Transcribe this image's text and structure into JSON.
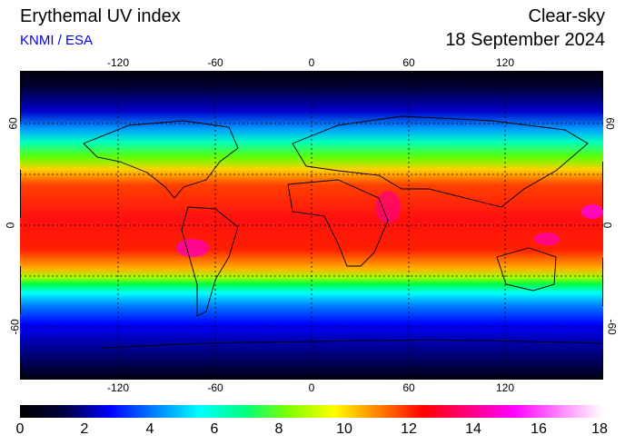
{
  "header": {
    "title": "Erythemal UV index",
    "source": "KNMI / ESA",
    "mode": "Clear-sky",
    "date": "18 September 2024"
  },
  "map": {
    "lon_ticks": [
      "-120",
      "-60",
      "0",
      "60",
      "120"
    ],
    "lat_ticks": [
      "60",
      "0",
      "-60"
    ]
  },
  "colorbar": {
    "labels": [
      "0",
      "2",
      "4",
      "6",
      "8",
      "10",
      "12",
      "14",
      "16",
      "18"
    ],
    "colors": [
      "#000000",
      "#000040",
      "#0000ff",
      "#0080ff",
      "#00ffff",
      "#00ff80",
      "#80ff00",
      "#ffff00",
      "#ff8000",
      "#ff0000",
      "#ff0080",
      "#ff00ff",
      "#ff80ff",
      "#ffffff"
    ]
  }
}
